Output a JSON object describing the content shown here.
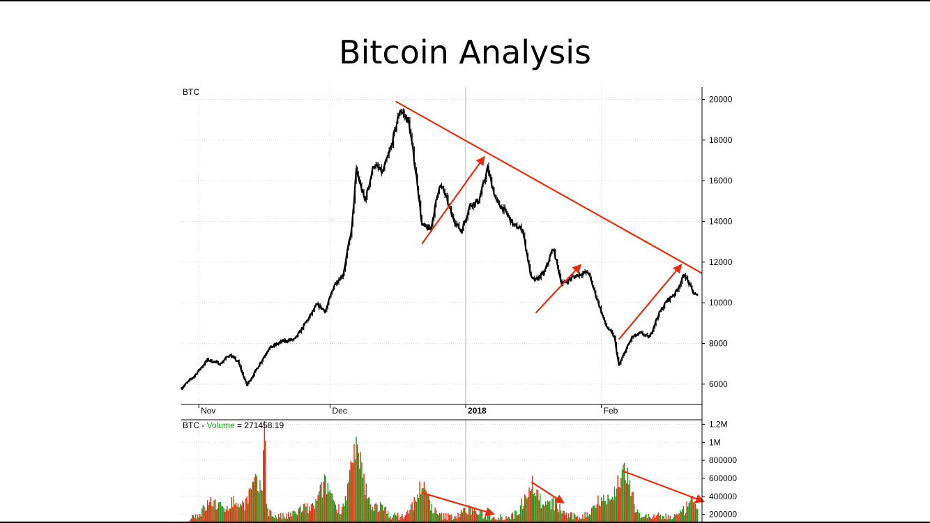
{
  "slide": {
    "title": "Bitcoin Analysis"
  },
  "chart_data": [
    {
      "type": "line",
      "symbol": "BTC",
      "ylim": [
        5000,
        20600
      ],
      "yticks": [
        6000,
        8000,
        10000,
        12000,
        14000,
        16000,
        18000,
        20000
      ],
      "ytick_labels": [
        "6000",
        "8000",
        "10000",
        "12000",
        "14000",
        "16000",
        "18000",
        "20000"
      ],
      "xticks": [
        {
          "label": "Nov",
          "date": "2017-11-01"
        },
        {
          "label": "Dec",
          "date": "2017-12-01"
        },
        {
          "label": "2018",
          "date": "2018-01-01"
        },
        {
          "label": "Feb",
          "date": "2018-02-01"
        }
      ],
      "xlim": [
        "2017-10-28",
        "2018-02-24"
      ],
      "grid": true,
      "series": [
        {
          "values": [
            [
              "2017-10-28",
              5800
            ],
            [
              "2017-10-31",
              6400
            ],
            [
              "2017-11-03",
              7200
            ],
            [
              "2017-11-06",
              7000
            ],
            [
              "2017-11-08",
              7450
            ],
            [
              "2017-11-10",
              7100
            ],
            [
              "2017-11-12",
              5950
            ],
            [
              "2017-11-14",
              6650
            ],
            [
              "2017-11-17",
              7750
            ],
            [
              "2017-11-20",
              8100
            ],
            [
              "2017-11-23",
              8200
            ],
            [
              "2017-11-26",
              9200
            ],
            [
              "2017-11-28",
              9900
            ],
            [
              "2017-11-30",
              9600
            ],
            [
              "2017-12-02",
              10900
            ],
            [
              "2017-12-04",
              11400
            ],
            [
              "2017-12-06",
              13700
            ],
            [
              "2017-12-07",
              16500
            ],
            [
              "2017-12-09",
              15000
            ],
            [
              "2017-12-11",
              16800
            ],
            [
              "2017-12-13",
              16400
            ],
            [
              "2017-12-15",
              17700
            ],
            [
              "2017-12-17",
              19500
            ],
            [
              "2017-12-19",
              18900
            ],
            [
              "2017-12-21",
              15800
            ],
            [
              "2017-12-22",
              13800
            ],
            [
              "2017-12-24",
              13600
            ],
            [
              "2017-12-26",
              15800
            ],
            [
              "2017-12-27",
              15500
            ],
            [
              "2017-12-29",
              14200
            ],
            [
              "2017-12-31",
              13500
            ],
            [
              "2018-01-02",
              14800
            ],
            [
              "2018-01-04",
              15000
            ],
            [
              "2018-01-06",
              16600
            ],
            [
              "2018-01-08",
              15000
            ],
            [
              "2018-01-10",
              14500
            ],
            [
              "2018-01-12",
              13800
            ],
            [
              "2018-01-14",
              13600
            ],
            [
              "2018-01-16",
              11200
            ],
            [
              "2018-01-17",
              11100
            ],
            [
              "2018-01-19",
              11500
            ],
            [
              "2018-01-21",
              12700
            ],
            [
              "2018-01-23",
              10900
            ],
            [
              "2018-01-25",
              11200
            ],
            [
              "2018-01-27",
              11400
            ],
            [
              "2018-01-29",
              11500
            ],
            [
              "2018-01-31",
              10200
            ],
            [
              "2018-02-02",
              8900
            ],
            [
              "2018-02-04",
              8300
            ],
            [
              "2018-02-05",
              6900
            ],
            [
              "2018-02-06",
              7400
            ],
            [
              "2018-02-08",
              8300
            ],
            [
              "2018-02-10",
              8500
            ],
            [
              "2018-02-12",
              8300
            ],
            [
              "2018-02-14",
              9400
            ],
            [
              "2018-02-16",
              10100
            ],
            [
              "2018-02-18",
              10500
            ],
            [
              "2018-02-20",
              11400
            ],
            [
              "2018-02-22",
              10500
            ],
            [
              "2018-02-23",
              10300
            ]
          ],
          "color": "#000000"
        }
      ],
      "annotations": [
        {
          "type": "trendline",
          "from": [
            "2017-12-16",
            19900
          ],
          "to": [
            "2018-02-24",
            11450
          ],
          "color": "#e82c0c"
        },
        {
          "type": "arrow",
          "from": [
            "2017-12-22",
            12900
          ],
          "to": [
            "2018-01-05",
            17100
          ],
          "color": "#e82c0c"
        },
        {
          "type": "arrow",
          "from": [
            "2018-01-17",
            9500
          ],
          "to": [
            "2018-01-27",
            11800
          ],
          "color": "#e82c0c"
        },
        {
          "type": "arrow",
          "from": [
            "2018-02-05",
            8200
          ],
          "to": [
            "2018-02-19",
            11800
          ],
          "color": "#e82c0c"
        }
      ]
    },
    {
      "type": "bar",
      "symbol": "BTC",
      "title_prefix": "BTC - ",
      "title_name": "Volume",
      "title_sep": " = ",
      "title_value": "271458.19",
      "title_value_color": "#1a9c1a",
      "ylim": [
        120000,
        1250000
      ],
      "yticks": [
        200000,
        400000,
        600000,
        800000,
        1000000,
        1200000
      ],
      "ytick_labels": [
        "200000",
        "400000",
        "600000",
        "800000",
        "1M",
        "1.2M"
      ],
      "colors": {
        "up": "#1a9c1a",
        "down": "#e82c0c"
      },
      "spikes": [
        {
          "date": "2017-11-04",
          "value": 330000
        },
        {
          "date": "2017-11-09",
          "value": 330000
        },
        {
          "date": "2017-11-14",
          "value": 520000
        },
        {
          "date": "2017-11-16",
          "value": 1180000
        },
        {
          "date": "2017-11-25",
          "value": 260000
        },
        {
          "date": "2017-11-30",
          "value": 520000
        },
        {
          "date": "2017-12-07",
          "value": 850000
        },
        {
          "date": "2017-12-12",
          "value": 280000
        },
        {
          "date": "2017-12-22",
          "value": 480000
        },
        {
          "date": "2018-01-02",
          "value": 250000
        },
        {
          "date": "2018-01-16",
          "value": 530000
        },
        {
          "date": "2018-01-21",
          "value": 310000
        },
        {
          "date": "2018-02-01",
          "value": 380000
        },
        {
          "date": "2018-02-06",
          "value": 670000
        },
        {
          "date": "2018-02-22",
          "value": 330000
        }
      ],
      "annotations": [
        {
          "type": "arrow",
          "from": [
            "2017-12-22",
            440000
          ],
          "to": [
            "2018-01-07",
            210000
          ],
          "color": "#e82c0c"
        },
        {
          "type": "arrow",
          "from": [
            "2018-01-16",
            560000
          ],
          "to": [
            "2018-01-23",
            340000
          ],
          "color": "#e82c0c"
        },
        {
          "type": "arrow",
          "from": [
            "2018-02-06",
            680000
          ],
          "to": [
            "2018-02-24",
            350000
          ],
          "color": "#e82c0c"
        }
      ]
    }
  ]
}
